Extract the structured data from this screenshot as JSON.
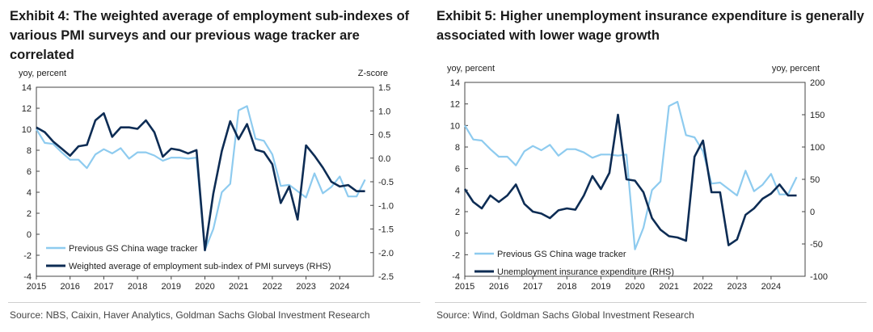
{
  "charts": [
    {
      "title": "Exhibit 4: The weighted average of employment sub-indexes of various PMI surveys and our previous wage tracker are correlated",
      "source": "Source: NBS, Caixin, Haver Analytics, Goldman Sachs Global Investment Research",
      "left_axis_label": "yoy, percent",
      "right_axis_label": "Z-score",
      "legend": [
        "Previous GS China wage tracker",
        "Weighted average of employment sub-index of PMI surveys (RHS)"
      ]
    },
    {
      "title": "Exhibit 5: Higher unemployment insurance expenditure is generally associated with lower wage growth",
      "source": "Source: Wind, Goldman Sachs Global Investment Research",
      "left_axis_label": "yoy, percent",
      "right_axis_label": "yoy, percent",
      "legend": [
        "Previous GS China wage tracker",
        "Unemployment insurance expenditure (RHS)"
      ]
    }
  ],
  "chart_data": [
    {
      "type": "line",
      "title": "Exhibit 4: The weighted average of employment sub-indexes of various PMI surveys and our previous wage tracker are correlated",
      "ylabel": "yoy, percent",
      "ylabel_right": "Z-score",
      "xlim": [
        2015,
        2025
      ],
      "ylim": [
        -4,
        14
      ],
      "ylim_right": [
        -2.5,
        1.5
      ],
      "x_ticks": [
        "2015",
        "2016",
        "2017",
        "2018",
        "2019",
        "2020",
        "2021",
        "2022",
        "2023",
        "2024"
      ],
      "y_ticks": [
        -4,
        -2,
        0,
        2,
        4,
        6,
        8,
        10,
        12,
        14
      ],
      "y_ticks_right": [
        "-2.5",
        "-2.0",
        "-1.5",
        "-1.0",
        "-0.5",
        "0.0",
        "0.5",
        "1.0",
        "1.5"
      ],
      "legend_position": "bottom-left",
      "grid": false,
      "colors": {
        "wage": "#8ecbef",
        "pmi": "#0d2c54"
      },
      "series": [
        {
          "name": "Previous GS China wage tracker",
          "axis": "left",
          "color": "#8ecbef",
          "x": [
            2015.0,
            2015.25,
            2015.5,
            2015.75,
            2016.0,
            2016.25,
            2016.5,
            2016.75,
            2017.0,
            2017.25,
            2017.5,
            2017.75,
            2018.0,
            2018.25,
            2018.5,
            2018.75,
            2019.0,
            2019.25,
            2019.5,
            2019.75,
            2020.0,
            2020.25,
            2020.5,
            2020.75,
            2021.0,
            2021.25,
            2021.5,
            2021.75,
            2022.0,
            2022.25,
            2022.5,
            2022.75,
            2023.0,
            2023.25,
            2023.5,
            2023.75,
            2024.0,
            2024.25,
            2024.5,
            2024.75
          ],
          "y": [
            10.0,
            8.7,
            8.6,
            7.8,
            7.1,
            7.1,
            6.3,
            7.6,
            8.1,
            7.7,
            8.2,
            7.2,
            7.8,
            7.8,
            7.5,
            7.0,
            7.3,
            7.3,
            7.2,
            7.3,
            -1.5,
            0.5,
            4.0,
            4.8,
            11.8,
            12.2,
            9.1,
            8.9,
            7.6,
            4.6,
            4.7,
            4.1,
            3.5,
            5.8,
            3.9,
            4.5,
            5.5,
            3.6,
            3.6,
            5.2
          ]
        },
        {
          "name": "Weighted average of employment sub-index of PMI surveys (RHS)",
          "axis": "right",
          "color": "#0d2c54",
          "x": [
            2015.0,
            2015.25,
            2015.5,
            2015.75,
            2016.0,
            2016.25,
            2016.5,
            2016.75,
            2017.0,
            2017.25,
            2017.5,
            2017.75,
            2018.0,
            2018.25,
            2018.5,
            2018.75,
            2019.0,
            2019.25,
            2019.5,
            2019.75,
            2020.0,
            2020.25,
            2020.5,
            2020.75,
            2021.0,
            2021.25,
            2021.5,
            2021.75,
            2022.0,
            2022.25,
            2022.5,
            2022.75,
            2023.0,
            2023.25,
            2023.5,
            2023.75,
            2024.0,
            2024.25,
            2024.5,
            2024.75
          ],
          "y": [
            0.65,
            0.55,
            0.35,
            0.2,
            0.05,
            0.25,
            0.28,
            0.8,
            0.95,
            0.45,
            0.65,
            0.65,
            0.62,
            0.8,
            0.55,
            0.03,
            0.2,
            0.17,
            0.1,
            0.17,
            -1.95,
            -0.75,
            0.15,
            0.78,
            0.4,
            0.72,
            0.18,
            0.13,
            -0.13,
            -0.95,
            -0.6,
            -1.3,
            0.27,
            0.05,
            -0.2,
            -0.5,
            -0.6,
            -0.57,
            -0.7,
            -0.7
          ]
        }
      ]
    },
    {
      "type": "line",
      "title": "Exhibit 5: Higher unemployment insurance expenditure is generally associated with lower wage growth",
      "ylabel": "yoy, percent",
      "ylabel_right": "yoy, percent",
      "xlim": [
        2015,
        2025
      ],
      "ylim": [
        -4,
        14
      ],
      "ylim_right": [
        -100,
        200
      ],
      "x_ticks": [
        "2015",
        "2016",
        "2017",
        "2018",
        "2019",
        "2020",
        "2021",
        "2022",
        "2023",
        "2024"
      ],
      "y_ticks": [
        -4,
        -2,
        0,
        2,
        4,
        6,
        8,
        10,
        12,
        14
      ],
      "y_ticks_right": [
        "-100",
        "-50",
        "0",
        "50",
        "100",
        "150",
        "200"
      ],
      "legend_position": "bottom-left",
      "grid": false,
      "colors": {
        "wage": "#8ecbef",
        "ui": "#0d2c54"
      },
      "series": [
        {
          "name": "Previous GS China wage tracker",
          "axis": "left",
          "color": "#8ecbef",
          "x": [
            2015.0,
            2015.25,
            2015.5,
            2015.75,
            2016.0,
            2016.25,
            2016.5,
            2016.75,
            2017.0,
            2017.25,
            2017.5,
            2017.75,
            2018.0,
            2018.25,
            2018.5,
            2018.75,
            2019.0,
            2019.25,
            2019.5,
            2019.75,
            2020.0,
            2020.25,
            2020.5,
            2020.75,
            2021.0,
            2021.25,
            2021.5,
            2021.75,
            2022.0,
            2022.25,
            2022.5,
            2022.75,
            2023.0,
            2023.25,
            2023.5,
            2023.75,
            2024.0,
            2024.25,
            2024.5,
            2024.75
          ],
          "y": [
            10.0,
            8.7,
            8.6,
            7.8,
            7.1,
            7.1,
            6.3,
            7.6,
            8.1,
            7.7,
            8.2,
            7.2,
            7.8,
            7.8,
            7.5,
            7.0,
            7.3,
            7.3,
            7.2,
            7.3,
            -1.5,
            0.5,
            4.0,
            4.8,
            11.8,
            12.2,
            9.1,
            8.9,
            7.6,
            4.6,
            4.7,
            4.1,
            3.5,
            5.8,
            3.9,
            4.5,
            5.5,
            3.6,
            3.6,
            5.2
          ]
        },
        {
          "name": "Unemployment insurance expenditure (RHS)",
          "axis": "right",
          "color": "#0d2c54",
          "x": [
            2015.0,
            2015.25,
            2015.5,
            2015.75,
            2016.0,
            2016.25,
            2016.5,
            2016.75,
            2017.0,
            2017.25,
            2017.5,
            2017.75,
            2018.0,
            2018.25,
            2018.5,
            2018.75,
            2019.0,
            2019.25,
            2019.5,
            2019.75,
            2020.0,
            2020.25,
            2020.5,
            2020.75,
            2021.0,
            2021.25,
            2021.5,
            2021.75,
            2022.0,
            2022.25,
            2022.5,
            2022.75,
            2023.0,
            2023.25,
            2023.5,
            2023.75,
            2024.0,
            2024.25,
            2024.5,
            2024.75
          ],
          "y": [
            35,
            15,
            5,
            25,
            15,
            25,
            42,
            12,
            0,
            -3,
            -10,
            2,
            5,
            3,
            25,
            55,
            35,
            60,
            150,
            50,
            48,
            30,
            -10,
            -28,
            -38,
            -40,
            -45,
            85,
            110,
            30,
            30,
            -52,
            -43,
            -5,
            5,
            20,
            28,
            42,
            25,
            25
          ]
        }
      ]
    }
  ]
}
